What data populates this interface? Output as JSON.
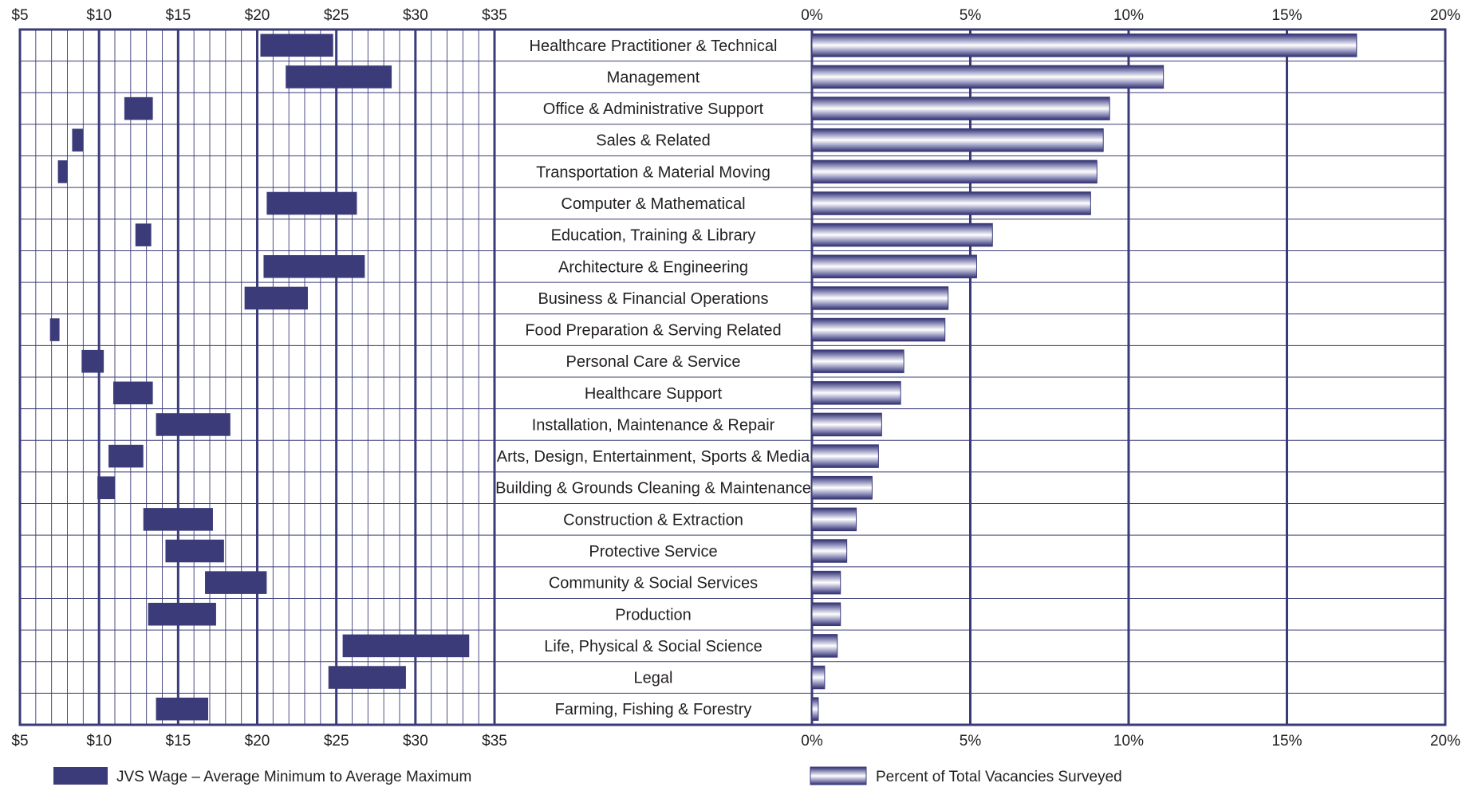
{
  "chart_data": [
    {
      "type": "bar",
      "orientation": "horizontal-range",
      "title": "",
      "xlabel": "",
      "ylabel": "",
      "xlim": [
        5,
        35
      ],
      "x_tick_labels": [
        "$5",
        "$10",
        "$15",
        "$20",
        "$25",
        "$30",
        "$35"
      ],
      "x_ticks": [
        5,
        10,
        15,
        20,
        25,
        30,
        35
      ],
      "grid": true,
      "legend": {
        "label": "JVS Wage – Average Minimum to Average Maximum",
        "placement": "bottom-left"
      },
      "color": "#3b3b7a",
      "categories": [
        "Healthcare Practitioner & Technical",
        "Management",
        "Office & Administrative Support",
        "Sales & Related",
        "Transportation & Material Moving",
        "Computer & Mathematical",
        "Education, Training & Library",
        "Architecture & Engineering",
        "Business & Financial Operations",
        "Food Preparation & Serving Related",
        "Personal Care & Service",
        "Healthcare Support",
        "Installation, Maintenance & Repair",
        "Arts, Design, Entertainment, Sports & Media",
        "Building & Grounds Cleaning & Maintenance",
        "Construction & Extraction",
        "Protective Service",
        "Community & Social Services",
        "Production",
        "Life, Physical & Social Science",
        "Legal",
        "Farming, Fishing & Forestry"
      ],
      "min": [
        20.2,
        21.8,
        11.6,
        8.3,
        7.4,
        20.6,
        12.3,
        20.4,
        19.2,
        6.9,
        8.9,
        10.9,
        13.6,
        10.6,
        9.9,
        12.8,
        14.2,
        16.7,
        13.1,
        25.4,
        24.5,
        13.6
      ],
      "max": [
        24.8,
        28.5,
        13.4,
        9.0,
        8.0,
        26.3,
        13.3,
        26.8,
        23.2,
        7.5,
        10.3,
        13.4,
        18.3,
        12.8,
        11.0,
        17.2,
        17.9,
        20.6,
        17.4,
        33.4,
        29.4,
        16.9
      ]
    },
    {
      "type": "bar",
      "orientation": "horizontal",
      "title": "",
      "xlabel": "",
      "ylabel": "",
      "xlim": [
        0,
        20
      ],
      "x_tick_labels": [
        "0%",
        "5%",
        "10%",
        "15%",
        "20%"
      ],
      "x_ticks": [
        0,
        5,
        10,
        15,
        20
      ],
      "grid": true,
      "legend": {
        "label": "Percent of Total Vacancies Surveyed",
        "placement": "bottom-right"
      },
      "color": "#3b3b7a",
      "categories": [
        "Healthcare Practitioner & Technical",
        "Management",
        "Office & Administrative Support",
        "Sales & Related",
        "Transportation & Material Moving",
        "Computer & Mathematical",
        "Education, Training & Library",
        "Architecture & Engineering",
        "Business & Financial Operations",
        "Food Preparation & Serving Related",
        "Personal Care & Service",
        "Healthcare Support",
        "Installation, Maintenance & Repair",
        "Arts, Design, Entertainment, Sports & Media",
        "Building & Grounds Cleaning & Maintenance",
        "Construction & Extraction",
        "Protective Service",
        "Community & Social Services",
        "Production",
        "Life, Physical & Social Science",
        "Legal",
        "Farming, Fishing & Forestry"
      ],
      "values": [
        17.2,
        11.1,
        9.4,
        9.2,
        9.0,
        8.8,
        5.7,
        5.2,
        4.3,
        4.2,
        2.9,
        2.8,
        2.2,
        2.1,
        1.9,
        1.4,
        1.1,
        0.9,
        0.9,
        0.8,
        0.4,
        0.2
      ]
    }
  ]
}
